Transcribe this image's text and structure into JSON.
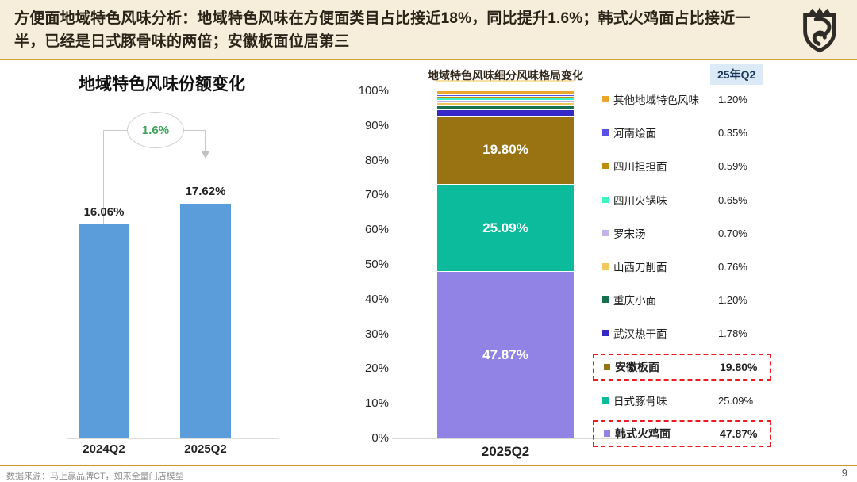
{
  "header": {
    "title": "方便面地域特色风味分析：地域特色风味在方便面类目占比接近18%，同比提升1.6%；韩式火鸡面占比接近一半，已经是日式豚骨味的两倍；安徽板面位居第三"
  },
  "legend": {
    "period": "25年Q2",
    "items": [
      {
        "label": "其他地域特色风味",
        "value": "1.20%",
        "color": "#ECA62E",
        "highlight": false
      },
      {
        "label": "河南烩面",
        "value": "0.35%",
        "color": "#5A50E6",
        "highlight": false
      },
      {
        "label": "四川担担面",
        "value": "0.59%",
        "color": "#BD8D0E",
        "highlight": false
      },
      {
        "label": "四川火锅味",
        "value": "0.65%",
        "color": "#3DF2C6",
        "highlight": false
      },
      {
        "label": "罗宋汤",
        "value": "0.70%",
        "color": "#C3B1EA",
        "highlight": false
      },
      {
        "label": "山西刀削面",
        "value": "0.76%",
        "color": "#F2C75C",
        "highlight": false
      },
      {
        "label": "重庆小面",
        "value": "1.20%",
        "color": "#17704E",
        "highlight": false
      },
      {
        "label": "武汉热干面",
        "value": "1.78%",
        "color": "#3528C8",
        "highlight": false
      },
      {
        "label": "安徽板面",
        "value": "19.80%",
        "color": "#997312",
        "highlight": true
      },
      {
        "label": "日式豚骨味",
        "value": "25.09%",
        "color": "#0CBB9B",
        "highlight": false
      },
      {
        "label": "韩式火鸡面",
        "value": "47.87%",
        "color": "#9183E6",
        "highlight": true
      }
    ]
  },
  "chart_data": [
    {
      "type": "bar",
      "title": "地域特色风味份额变化",
      "categories": [
        "2024Q2",
        "2025Q2"
      ],
      "values": [
        16.06,
        17.62
      ],
      "value_labels": [
        "16.06%",
        "17.62%"
      ],
      "annotation": "1.6%",
      "bar_color": "#5B9DDB",
      "ylim": [
        0,
        20
      ],
      "grid": false,
      "legend_position": "none"
    },
    {
      "type": "bar",
      "subtype": "stacked",
      "title": "地域特色风味细分风味格局变化",
      "categories": [
        "2025Q2"
      ],
      "y_ticks": [
        "100%",
        "90%",
        "80%",
        "70%",
        "60%",
        "50%",
        "40%",
        "30%",
        "20%",
        "10%",
        "0%"
      ],
      "ylim": [
        0,
        100
      ],
      "grid": false,
      "legend_position": "right",
      "series": [
        {
          "name": "其他地域特色风味",
          "value": 1.2,
          "display": "1.20%",
          "color": "#ECA62E"
        },
        {
          "name": "河南烩面",
          "value": 0.35,
          "display": "0.35%",
          "color": "#5A50E6"
        },
        {
          "name": "四川担担面",
          "value": 0.59,
          "display": "0.59%",
          "color": "#BD8D0E"
        },
        {
          "name": "四川火锅味",
          "value": 0.65,
          "display": "0.65%",
          "color": "#3DF2C6"
        },
        {
          "name": "罗宋汤",
          "value": 0.7,
          "display": "0.70%",
          "color": "#C3B1EA"
        },
        {
          "name": "山西刀削面",
          "value": 0.76,
          "display": "0.76%",
          "color": "#F2C75C"
        },
        {
          "name": "重庆小面",
          "value": 1.2,
          "display": "1.20%",
          "color": "#17704E"
        },
        {
          "name": "武汉热干面",
          "value": 1.78,
          "display": "1.78%",
          "color": "#3528C8"
        },
        {
          "name": "安徽板面",
          "value": 19.8,
          "display": "19.80%",
          "color": "#997312"
        },
        {
          "name": "日式豚骨味",
          "value": 25.09,
          "display": "25.09%",
          "color": "#0CBB9B"
        },
        {
          "name": "韩式火鸡面",
          "value": 47.87,
          "display": "47.87%",
          "color": "#9183E6"
        }
      ]
    }
  ],
  "footer": {
    "source": "数据来源：马上赢品牌CT，如来全量门店模型",
    "page": "9"
  }
}
